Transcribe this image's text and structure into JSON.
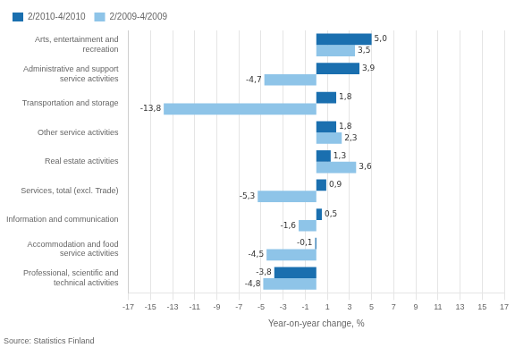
{
  "chart_data": {
    "type": "bar",
    "orientation": "horizontal",
    "categories": [
      "Professional, scientific and\ntechnical activities",
      "Accommodation and food\nservice activities",
      "Information and communication",
      "Services, total (excl. Trade)",
      "Real estate activities",
      "Other service activities",
      "Transportation and storage",
      "Administrative and support\nservice activities",
      "Arts, entertainment and\nrecreation"
    ],
    "series": [
      {
        "name": "2/2010-4/2010",
        "color": "#1a6faf",
        "values": [
          -3.8,
          -0.1,
          0.5,
          0.9,
          1.3,
          1.8,
          1.8,
          3.9,
          5.0
        ],
        "value_labels": [
          "-3,8",
          "-0,1",
          "0,5",
          "0,9",
          "1,3",
          "1,8",
          "1,8",
          "3,9",
          "5,0"
        ]
      },
      {
        "name": "2/2009-4/2009",
        "color": "#8ec4e8",
        "values": [
          -4.8,
          -4.5,
          -1.6,
          -5.3,
          3.6,
          2.3,
          -13.8,
          -4.7,
          3.5
        ],
        "value_labels": [
          "-4,8",
          "-4,5",
          "-1,6",
          "-5,3",
          "3,6",
          "2,3",
          "-13,8",
          "-4,7",
          "3,5"
        ]
      }
    ],
    "xlabel": "Year-on-year change, %",
    "xlim": [
      -17,
      17
    ],
    "xticks": [
      -17,
      -15,
      -13,
      -11,
      -9,
      -7,
      -5,
      -3,
      -1,
      1,
      3,
      5,
      7,
      9,
      11,
      13,
      15,
      17
    ],
    "grid": true,
    "legend": "upper left",
    "data_labels": true,
    "source": "Source: Statistics Finland"
  }
}
